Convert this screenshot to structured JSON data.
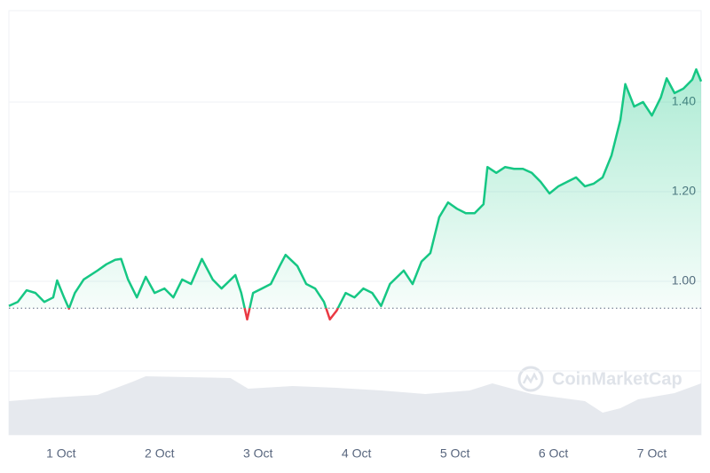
{
  "chart_data": {
    "type": "line",
    "watermark": "CoinMarketCap",
    "x": [
      0.47,
      0.56,
      0.65,
      0.74,
      0.83,
      0.92,
      0.96,
      1.03,
      1.08,
      1.14,
      1.23,
      1.37,
      1.46,
      1.55,
      1.61,
      1.68,
      1.77,
      1.86,
      1.95,
      2.05,
      2.14,
      2.23,
      2.32,
      2.43,
      2.54,
      2.63,
      2.77,
      2.83,
      2.89,
      2.95,
      3.04,
      3.13,
      3.22,
      3.28,
      3.4,
      3.49,
      3.58,
      3.67,
      3.73,
      3.8,
      3.89,
      3.98,
      4.07,
      4.16,
      4.25,
      4.34,
      4.48,
      4.57,
      4.66,
      4.75,
      4.84,
      4.93,
      5.02,
      5.11,
      5.2,
      5.29,
      5.33,
      5.42,
      5.51,
      5.6,
      5.69,
      5.78,
      5.87,
      5.96,
      6.05,
      6.14,
      6.23,
      6.32,
      6.41,
      6.5,
      6.59,
      6.68,
      6.73,
      6.82,
      6.91,
      7.0,
      7.09,
      7.15,
      7.23,
      7.32,
      7.41,
      7.45,
      7.5
    ],
    "series": [
      {
        "color": "#16c784",
        "below_color": "#ea3943",
        "values": [
          0.945,
          0.954,
          0.98,
          0.974,
          0.954,
          0.964,
          1.002,
          0.964,
          0.939,
          0.974,
          1.004,
          1.024,
          1.038,
          1.048,
          1.05,
          1.004,
          0.964,
          1.01,
          0.974,
          0.984,
          0.964,
          1.004,
          0.994,
          1.05,
          1.004,
          0.984,
          1.014,
          0.974,
          0.915,
          0.974,
          0.984,
          0.994,
          1.034,
          1.059,
          1.034,
          0.994,
          0.984,
          0.954,
          0.915,
          0.935,
          0.974,
          0.964,
          0.984,
          0.974,
          0.945,
          0.994,
          1.024,
          0.994,
          1.044,
          1.063,
          1.143,
          1.176,
          1.162,
          1.152,
          1.152,
          1.172,
          1.255,
          1.242,
          1.255,
          1.251,
          1.251,
          1.242,
          1.222,
          1.196,
          1.212,
          1.222,
          1.232,
          1.212,
          1.218,
          1.232,
          1.281,
          1.36,
          1.44,
          1.39,
          1.4,
          1.37,
          1.41,
          1.453,
          1.42,
          1.43,
          1.45,
          1.473,
          1.446
        ]
      },
      {
        "type": "area",
        "axis": "y2",
        "color": "#e6e9ee",
        "x": [
          0.47,
          0.92,
          1.37,
          1.73,
          1.86,
          2.72,
          2.9,
          3.35,
          3.8,
          4.25,
          4.7,
          5.15,
          5.38,
          5.78,
          6.32,
          6.5,
          6.68,
          6.86,
          7.23,
          7.5
        ],
        "values": [
          38,
          42,
          45,
          60,
          66,
          64,
          52,
          55,
          53,
          50,
          46,
          50,
          58,
          46,
          38,
          25,
          30,
          40,
          47,
          58
        ]
      }
    ],
    "xlim": [
      0.47,
      7.5
    ],
    "xticks": [
      {
        "value": 1,
        "label": "1 Oct"
      },
      {
        "value": 2,
        "label": "2 Oct"
      },
      {
        "value": 3,
        "label": "3 Oct"
      },
      {
        "value": 4,
        "label": "4 Oct"
      },
      {
        "value": 5,
        "label": "5 Oct"
      },
      {
        "value": 6,
        "label": "6 Oct"
      },
      {
        "value": 7,
        "label": "7 Oct"
      }
    ],
    "ylim": [
      0.8,
      1.6
    ],
    "yticks": [
      {
        "value": 1,
        "label": "1.00"
      },
      {
        "value": 1.2,
        "label": "1.20"
      },
      {
        "value": 1.4,
        "label": "1.40"
      }
    ],
    "y2lim": [
      0,
      70
    ],
    "baseline": 0.94,
    "grid": true
  }
}
